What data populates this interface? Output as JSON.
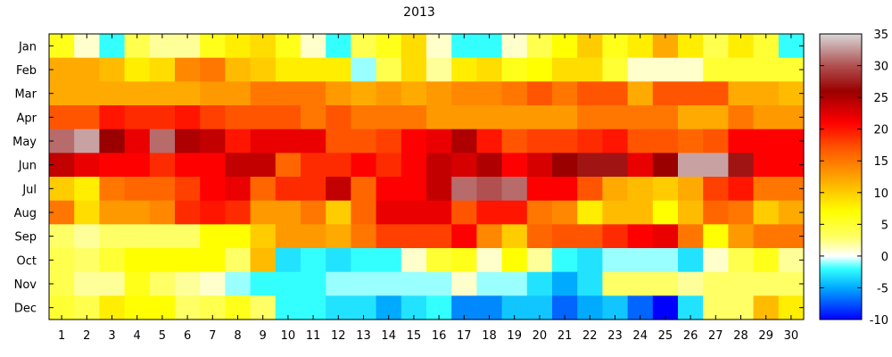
{
  "chart_data": {
    "type": "heatmap",
    "title": "2013",
    "x_categories": [
      "1",
      "2",
      "3",
      "4",
      "5",
      "6",
      "7",
      "8",
      "9",
      "10",
      "11",
      "12",
      "13",
      "14",
      "15",
      "16",
      "17",
      "18",
      "19",
      "20",
      "21",
      "22",
      "23",
      "24",
      "25",
      "26",
      "27",
      "28",
      "29",
      "30"
    ],
    "y_categories": [
      "Jan",
      "Feb",
      "Mar",
      "Apr",
      "May",
      "Jun",
      "Jul",
      "Aug",
      "Sep",
      "Oct",
      "Nov",
      "Dec"
    ],
    "colorbar": {
      "range": [
        -10,
        35
      ],
      "ticks": [
        "-10",
        "-5",
        "0",
        "5",
        "10",
        "15",
        "20",
        "25",
        "30",
        "35"
      ],
      "stops": [
        {
          "v": -10,
          "c": "#0000ff"
        },
        {
          "v": -5,
          "c": "#00aaff"
        },
        {
          "v": -2,
          "c": "#33ffff"
        },
        {
          "v": 0,
          "c": "#ffffff"
        },
        {
          "v": 3,
          "c": "#ffff66"
        },
        {
          "v": 7,
          "c": "#ffff00"
        },
        {
          "v": 12,
          "c": "#ffaa00"
        },
        {
          "v": 17,
          "c": "#ff5500"
        },
        {
          "v": 21,
          "c": "#ff0000"
        },
        {
          "v": 26,
          "c": "#9a0000"
        },
        {
          "v": 30,
          "c": "#b05050"
        },
        {
          "v": 35,
          "c": "#d8d8d8"
        }
      ]
    },
    "values": [
      [
        6,
        1,
        -2,
        4,
        2,
        2,
        6,
        8,
        9,
        6,
        1,
        -2,
        4,
        6,
        9,
        1,
        -2,
        -2,
        1,
        4,
        7,
        10,
        6,
        8,
        12,
        8,
        4,
        8,
        5,
        -2
      ],
      [
        12,
        12,
        11,
        8,
        9,
        14,
        15,
        11,
        10,
        8,
        8,
        8,
        -1,
        4,
        9,
        2,
        8,
        9,
        6,
        7,
        9,
        9,
        5,
        1,
        1,
        1,
        5,
        5,
        5,
        5
      ],
      [
        12,
        12,
        12,
        12,
        12,
        12,
        13,
        13,
        15,
        15,
        15,
        13,
        12,
        13,
        12,
        13,
        14,
        14,
        15,
        17,
        15,
        17,
        17,
        12,
        17,
        17,
        17,
        12,
        12,
        11
      ],
      [
        17,
        17,
        20,
        19,
        19,
        20,
        18,
        17,
        17,
        17,
        15,
        17,
        15,
        15,
        15,
        13,
        13,
        13,
        13,
        13,
        13,
        15,
        15,
        15,
        15,
        12,
        12,
        15,
        13,
        13
      ],
      [
        31,
        33,
        26,
        22,
        31,
        25,
        24,
        20,
        22,
        22,
        22,
        17,
        17,
        18,
        21,
        22,
        25,
        20,
        17,
        18,
        18,
        19,
        20,
        17,
        17,
        16,
        17,
        21,
        21,
        21
      ],
      [
        24,
        22,
        21,
        21,
        19,
        21,
        21,
        24,
        24,
        16,
        19,
        19,
        21,
        19,
        21,
        24,
        23,
        25,
        21,
        23,
        26,
        27,
        27,
        22,
        26,
        33,
        33,
        27,
        21,
        21
      ],
      [
        10,
        8,
        15,
        16,
        16,
        18,
        21,
        22,
        16,
        19,
        19,
        24,
        16,
        21,
        21,
        24,
        31,
        30,
        31,
        21,
        21,
        17,
        12,
        11,
        10,
        12,
        18,
        20,
        15,
        15
      ],
      [
        15,
        9,
        13,
        13,
        14,
        19,
        20,
        19,
        13,
        13,
        15,
        10,
        16,
        22,
        22,
        22,
        17,
        20,
        20,
        15,
        14,
        8,
        11,
        11,
        7,
        11,
        16,
        15,
        10,
        12
      ],
      [
        3,
        2,
        3,
        3,
        3,
        3,
        7,
        7,
        10,
        13,
        13,
        12,
        15,
        18,
        18,
        18,
        21,
        14,
        10,
        16,
        17,
        17,
        19,
        21,
        22,
        15,
        7,
        13,
        15,
        15
      ],
      [
        4,
        3,
        5,
        7,
        7,
        7,
        7,
        3,
        11,
        -3,
        -2,
        -3,
        -2,
        -2,
        1,
        5,
        6,
        1,
        7,
        2,
        -2,
        -3,
        -1,
        -1,
        -1,
        -3,
        1,
        4,
        6,
        2
      ],
      [
        4,
        2,
        2,
        6,
        3,
        2,
        1,
        -1,
        -2,
        -2,
        -2,
        -1,
        -1,
        -1,
        -1,
        -1,
        1,
        -1,
        -1,
        -3,
        -5,
        -3,
        3,
        3,
        3,
        2,
        3,
        3,
        3,
        3
      ],
      [
        5,
        4,
        8,
        7,
        7,
        3,
        4,
        6,
        3,
        -2,
        -2,
        -3,
        -3,
        -5,
        -3,
        -2,
        -6,
        -6,
        -4,
        -4,
        -7,
        -5,
        -4,
        -7,
        -10,
        -3,
        3,
        3,
        11,
        8
      ]
    ]
  }
}
